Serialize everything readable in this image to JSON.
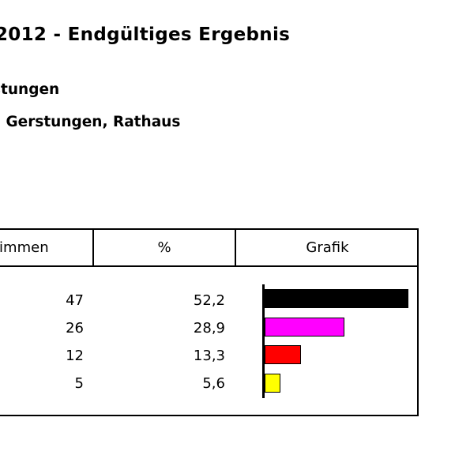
{
  "header": {
    "title": "2012 - Endgültiges Ergebnis",
    "subtitle1": "stungen",
    "subtitle2": ". Gerstungen, Rathaus"
  },
  "table": {
    "headers": {
      "votes": "timmen",
      "percent": "%",
      "chart": "Grafik"
    },
    "rows": [
      {
        "votes": "47",
        "percent": "52,2",
        "pct_value": 52.2,
        "color": "#000000"
      },
      {
        "votes": "26",
        "percent": "28,9",
        "pct_value": 28.9,
        "color": "#ff00ff"
      },
      {
        "votes": "12",
        "percent": "13,3",
        "pct_value": 13.3,
        "color": "#ff0000"
      },
      {
        "votes": "5",
        "percent": "5,6",
        "pct_value": 5.6,
        "color": "#ffff00"
      }
    ]
  },
  "chart_data": {
    "type": "bar",
    "orientation": "horizontal",
    "values": [
      52.2,
      28.9,
      13.3,
      5.6
    ],
    "colors": [
      "#000000",
      "#ff00ff",
      "#ff0000",
      "#ffff00"
    ],
    "title": "Grafik"
  }
}
